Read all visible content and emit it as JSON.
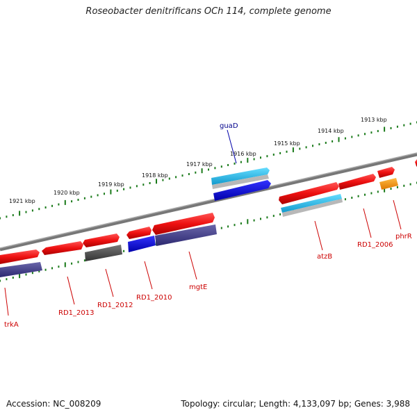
{
  "title": "Roseobacter denitrificans OCh 114, complete genome",
  "footer": {
    "accession": "Accession: NC_008209",
    "topology": "Topology: circular; Length: 4,133,097 bp; Genes: 3,988"
  },
  "scale_labels": [
    "1921 kbp",
    "1920 kbp",
    "1919 kbp",
    "1918 kbp",
    "1917 kbp",
    "1916 kbp",
    "1915 kbp",
    "1914 kbp",
    "1913 kbp"
  ],
  "gene_labels": [
    {
      "text": "guaD",
      "color": "#00008b"
    },
    {
      "text": "atzB",
      "color": "#cc0000"
    },
    {
      "text": "RD1_2006",
      "color": "#cc0000"
    },
    {
      "text": "phrR",
      "color": "#cc0000"
    },
    {
      "text": "mgtE",
      "color": "#cc0000"
    },
    {
      "text": "RD1_2010",
      "color": "#cc0000"
    },
    {
      "text": "RD1_2012",
      "color": "#cc0000"
    },
    {
      "text": "RD1_2013",
      "color": "#cc0000"
    },
    {
      "text": "trkA",
      "color": "#cc0000"
    }
  ],
  "colors": {
    "cds_red": "#ee1111",
    "rna_cyan": "#22bbee",
    "blue": "#1111ee",
    "purple": "#44408a",
    "gray_gene": "#555555",
    "orange": "#ff9900",
    "backbone": "#888888",
    "tick_green": "#1a7a1a"
  }
}
